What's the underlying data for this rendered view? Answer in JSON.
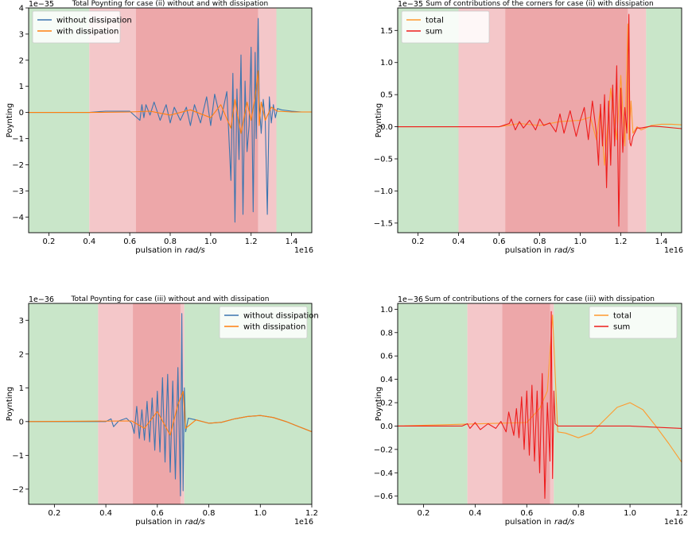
{
  "chart_data": [
    {
      "type": "line",
      "title": "Total Poynting for case (ii) without and with dissipation",
      "xlabel": "pulsation in",
      "xlabel_unit": "rad/s",
      "ylabel": "Poynting",
      "x_exponent": "1e16",
      "y_exponent": "1e−35",
      "xlim": [
        0.1,
        1.5
      ],
      "ylim": [
        -4.6,
        4.0
      ],
      "xticks": [
        0.2,
        0.4,
        0.6,
        0.8,
        1.0,
        1.2,
        1.4
      ],
      "xtick_labels": [
        "0.2",
        "0.4",
        "0.6",
        "0.8",
        "1.0",
        "1.2",
        "1.4"
      ],
      "yticks": [
        -4,
        -3,
        -2,
        -1,
        0,
        1,
        2,
        3,
        4
      ],
      "ytick_labels": [
        "−4",
        "−3",
        "−2",
        "−1",
        "0",
        "1",
        "2",
        "3",
        "4"
      ],
      "legend_position": "top-left",
      "bands": [
        {
          "x0": 0.1,
          "x1": 0.4,
          "color": "#c9e6c9"
        },
        {
          "x0": 0.4,
          "x1": 0.63,
          "color": "#f4c7c9"
        },
        {
          "x0": 0.63,
          "x1": 1.235,
          "color": "#eda7a9"
        },
        {
          "x0": 1.235,
          "x1": 1.325,
          "color": "#f4c7c9"
        },
        {
          "x0": 1.325,
          "x1": 1.5,
          "color": "#c9e6c9"
        }
      ],
      "series": [
        {
          "name": "without dissipation",
          "color": "#3b75af",
          "x": [
            0.1,
            0.4,
            0.48,
            0.6,
            0.65,
            0.66,
            0.67,
            0.68,
            0.7,
            0.72,
            0.75,
            0.78,
            0.8,
            0.82,
            0.85,
            0.88,
            0.9,
            0.92,
            0.95,
            0.98,
            1.0,
            1.02,
            1.05,
            1.08,
            1.1,
            1.11,
            1.12,
            1.13,
            1.14,
            1.15,
            1.16,
            1.17,
            1.18,
            1.19,
            1.2,
            1.21,
            1.22,
            1.225,
            1.23,
            1.235,
            1.24,
            1.25,
            1.26,
            1.27,
            1.28,
            1.29,
            1.3,
            1.31,
            1.32,
            1.33,
            1.35,
            1.4,
            1.45,
            1.5
          ],
          "y": [
            0,
            0,
            0.05,
            0.05,
            -0.3,
            0.3,
            -0.2,
            0.3,
            -0.1,
            0.4,
            -0.3,
            0.3,
            -0.4,
            0.2,
            -0.3,
            0.2,
            -0.5,
            0.3,
            -0.4,
            0.6,
            -0.5,
            0.7,
            -0.3,
            0.8,
            -2.6,
            1.5,
            -4.2,
            0.9,
            -1.8,
            2.2,
            -3.9,
            1.2,
            -1.5,
            -0.5,
            2.5,
            -3.8,
            2.3,
            -1.0,
            1.2,
            3.6,
            0.4,
            -0.8,
            0.5,
            -0.3,
            -3.9,
            0.6,
            -0.4,
            0.3,
            -0.2,
            0.15,
            0.1,
            0.05,
            0.02,
            0.02
          ]
        },
        {
          "name": "with dissipation",
          "color": "#ff7f0e",
          "x": [
            0.1,
            0.4,
            0.6,
            0.7,
            0.8,
            0.9,
            1.0,
            1.05,
            1.1,
            1.12,
            1.15,
            1.18,
            1.2,
            1.22,
            1.235,
            1.24,
            1.25,
            1.27,
            1.3,
            1.33,
            1.4,
            1.5
          ],
          "y": [
            0,
            0,
            0.02,
            0.05,
            -0.1,
            0.1,
            -0.2,
            0.3,
            -0.6,
            0.5,
            -0.8,
            0.4,
            -0.3,
            0.6,
            1.6,
            -0.5,
            0.4,
            -0.3,
            0.2,
            0.05,
            0.02,
            0.02
          ]
        }
      ]
    },
    {
      "type": "line",
      "title": "Sum of contributions of the corners for case (ii) with dissipation",
      "xlabel": "pulsation in",
      "xlabel_unit": "rad/s",
      "ylabel": "Poynting",
      "x_exponent": "1e16",
      "y_exponent": "1e−35",
      "xlim": [
        0.1,
        1.5
      ],
      "ylim": [
        -1.65,
        1.85
      ],
      "xticks": [
        0.2,
        0.4,
        0.6,
        0.8,
        1.0,
        1.2,
        1.4
      ],
      "xtick_labels": [
        "0.2",
        "0.4",
        "0.6",
        "0.8",
        "1.0",
        "1.2",
        "1.4"
      ],
      "yticks": [
        -1.5,
        -1.0,
        -0.5,
        0.0,
        0.5,
        1.0,
        1.5
      ],
      "ytick_labels": [
        "−1.5",
        "−1.0",
        "−0.5",
        "0.0",
        "0.5",
        "1.0",
        "1.5"
      ],
      "legend_position": "top-left",
      "bands": [
        {
          "x0": 0.1,
          "x1": 0.4,
          "color": "#c9e6c9"
        },
        {
          "x0": 0.4,
          "x1": 0.63,
          "color": "#f4c7c9"
        },
        {
          "x0": 0.63,
          "x1": 1.235,
          "color": "#eda7a9"
        },
        {
          "x0": 1.235,
          "x1": 1.325,
          "color": "#f4c7c9"
        },
        {
          "x0": 1.325,
          "x1": 1.5,
          "color": "#c9e6c9"
        }
      ],
      "series": [
        {
          "name": "total",
          "color": "#ff9a2e",
          "x": [
            0.1,
            0.6,
            0.7,
            0.8,
            0.9,
            1.0,
            1.05,
            1.08,
            1.1,
            1.12,
            1.15,
            1.18,
            1.2,
            1.22,
            1.235,
            1.24,
            1.25,
            1.26,
            1.28,
            1.3,
            1.35,
            1.4,
            1.45,
            1.5
          ],
          "y": [
            0,
            0,
            0.05,
            0.02,
            0.08,
            0.1,
            0.15,
            -0.2,
            0.3,
            -0.6,
            0.6,
            -0.2,
            0.8,
            -0.3,
            1.6,
            -0.2,
            0.4,
            -0.1,
            0,
            -0.05,
            0.02,
            0.04,
            0.04,
            0.03
          ]
        },
        {
          "name": "sum",
          "color": "#ee1c1c",
          "x": [
            0.1,
            0.6,
            0.65,
            0.66,
            0.68,
            0.7,
            0.72,
            0.75,
            0.78,
            0.8,
            0.82,
            0.85,
            0.88,
            0.9,
            0.92,
            0.95,
            0.98,
            1.0,
            1.02,
            1.04,
            1.06,
            1.08,
            1.09,
            1.1,
            1.11,
            1.12,
            1.13,
            1.14,
            1.15,
            1.16,
            1.17,
            1.18,
            1.19,
            1.2,
            1.21,
            1.22,
            1.23,
            1.24,
            1.245,
            1.25,
            1.26,
            1.28,
            1.3,
            1.35,
            1.4,
            1.5
          ],
          "y": [
            0,
            0,
            0.05,
            0.12,
            -0.05,
            0.08,
            -0.02,
            0.1,
            -0.05,
            0.12,
            0.02,
            0.06,
            -0.08,
            0.2,
            -0.1,
            0.25,
            -0.15,
            0.1,
            0.3,
            -0.2,
            0.4,
            -0.1,
            -0.6,
            0.35,
            -0.3,
            0.5,
            -0.95,
            0.4,
            -0.6,
            0.65,
            -0.3,
            0.95,
            -1.55,
            0.6,
            -0.4,
            0.3,
            -0.1,
            1.75,
            -0.25,
            -0.3,
            -0.15,
            -0.02,
            -0.02,
            0.01,
            0,
            -0.03
          ]
        }
      ]
    },
    {
      "type": "line",
      "title": "Total Poynting for case (iii) without and with dissipation",
      "xlabel": "pulsation in",
      "xlabel_unit": "rad/s",
      "ylabel": "Poynting",
      "x_exponent": "1e16",
      "y_exponent": "1e−36",
      "xlim": [
        0.1,
        1.2
      ],
      "ylim": [
        -2.45,
        3.5
      ],
      "xticks": [
        0.2,
        0.4,
        0.6,
        0.8,
        1.0,
        1.2
      ],
      "xtick_labels": [
        "0.2",
        "0.4",
        "0.6",
        "0.8",
        "1.0",
        "1.2"
      ],
      "yticks": [
        -2,
        -1,
        0,
        1,
        2,
        3
      ],
      "ytick_labels": [
        "−2",
        "−1",
        "0",
        "1",
        "2",
        "3"
      ],
      "legend_position": "top-right",
      "bands": [
        {
          "x0": 0.1,
          "x1": 0.37,
          "color": "#c9e6c9"
        },
        {
          "x0": 0.37,
          "x1": 0.505,
          "color": "#f4c7c9"
        },
        {
          "x0": 0.505,
          "x1": 0.69,
          "color": "#eda7a9"
        },
        {
          "x0": 0.69,
          "x1": 0.705,
          "color": "#f4c7c9"
        },
        {
          "x0": 0.705,
          "x1": 1.2,
          "color": "#c9e6c9"
        }
      ],
      "series": [
        {
          "name": "without dissipation",
          "color": "#3b75af",
          "x": [
            0.1,
            0.4,
            0.42,
            0.43,
            0.45,
            0.48,
            0.5,
            0.51,
            0.52,
            0.53,
            0.54,
            0.55,
            0.56,
            0.57,
            0.58,
            0.59,
            0.6,
            0.61,
            0.62,
            0.63,
            0.64,
            0.65,
            0.66,
            0.67,
            0.68,
            0.69,
            0.695,
            0.7,
            0.705,
            0.71,
            0.72,
            0.75,
            0.8,
            0.85,
            0.9,
            0.95,
            1.0,
            1.05,
            1.1,
            1.15,
            1.2
          ],
          "y": [
            0,
            0,
            0.08,
            -0.15,
            0.02,
            0.1,
            -0.05,
            -0.35,
            0.45,
            -0.5,
            0.35,
            -0.55,
            0.6,
            -0.6,
            0.7,
            -0.85,
            0.9,
            -0.9,
            1.3,
            -1.2,
            1.4,
            -1.5,
            1.2,
            -1.7,
            1.6,
            -2.2,
            3.2,
            -2.05,
            1.0,
            -0.3,
            0.1,
            0.05,
            -0.05,
            -0.02,
            0.08,
            0.15,
            0.18,
            0.12,
            0,
            -0.15,
            -0.3
          ]
        },
        {
          "name": "with dissipation",
          "color": "#ff7f0e",
          "x": [
            0.1,
            0.5,
            0.55,
            0.6,
            0.65,
            0.68,
            0.7,
            0.71,
            0.75,
            0.8,
            0.85,
            0.9,
            0.95,
            1.0,
            1.05,
            1.1,
            1.15,
            1.2
          ],
          "y": [
            0,
            0.02,
            -0.2,
            0.3,
            -0.4,
            0.5,
            0.9,
            -0.2,
            0.05,
            -0.05,
            -0.02,
            0.08,
            0.15,
            0.18,
            0.12,
            0,
            -0.15,
            -0.3
          ]
        }
      ]
    },
    {
      "type": "line",
      "title": "Sum of contributions of the corners for case (iii) with dissipation",
      "xlabel": "pulsation in",
      "xlabel_unit": "rad/s",
      "ylabel": "Poynting",
      "x_exponent": "1e16",
      "y_exponent": "1e−36",
      "xlim": [
        0.1,
        1.2
      ],
      "ylim": [
        -0.67,
        1.05
      ],
      "xticks": [
        0.2,
        0.4,
        0.6,
        0.8,
        1.0,
        1.2
      ],
      "xtick_labels": [
        "0.2",
        "0.4",
        "0.6",
        "0.8",
        "1.0",
        "1.2"
      ],
      "yticks": [
        -0.6,
        -0.4,
        -0.2,
        0.0,
        0.2,
        0.4,
        0.6,
        0.8,
        1.0
      ],
      "ytick_labels": [
        "−0.6",
        "−0.4",
        "−0.2",
        "0.0",
        "0.2",
        "0.4",
        "0.6",
        "0.8",
        "1.0"
      ],
      "legend_position": "top-right",
      "bands": [
        {
          "x0": 0.1,
          "x1": 0.37,
          "color": "#c9e6c9"
        },
        {
          "x0": 0.37,
          "x1": 0.505,
          "color": "#f4c7c9"
        },
        {
          "x0": 0.505,
          "x1": 0.69,
          "color": "#eda7a9"
        },
        {
          "x0": 0.69,
          "x1": 0.705,
          "color": "#f4c7c9"
        },
        {
          "x0": 0.705,
          "x1": 1.2,
          "color": "#c9e6c9"
        }
      ],
      "series": [
        {
          "name": "total",
          "color": "#ff9a2e",
          "x": [
            0.1,
            0.6,
            0.65,
            0.68,
            0.7,
            0.72,
            0.75,
            0.8,
            0.85,
            0.9,
            0.95,
            1.0,
            1.05,
            1.1,
            1.15,
            1.2
          ],
          "y": [
            0,
            0.03,
            0.15,
            0.3,
            0.95,
            -0.05,
            -0.06,
            -0.1,
            -0.06,
            0.05,
            0.16,
            0.2,
            0.14,
            0,
            -0.15,
            -0.31
          ]
        },
        {
          "name": "sum",
          "color": "#ee1c1c",
          "x": [
            0.1,
            0.35,
            0.37,
            0.38,
            0.4,
            0.42,
            0.45,
            0.48,
            0.5,
            0.52,
            0.53,
            0.55,
            0.56,
            0.57,
            0.58,
            0.59,
            0.6,
            0.61,
            0.62,
            0.63,
            0.64,
            0.65,
            0.66,
            0.67,
            0.68,
            0.69,
            0.695,
            0.7,
            0.705,
            0.71,
            0.72,
            0.8,
            0.9,
            1.0,
            1.1,
            1.2
          ],
          "y": [
            0,
            0,
            0.02,
            -0.02,
            0.03,
            -0.03,
            0.02,
            -0.02,
            0.04,
            -0.05,
            0.12,
            -0.08,
            0.15,
            -0.1,
            0.25,
            -0.2,
            0.3,
            -0.25,
            0.35,
            -0.3,
            0.3,
            -0.4,
            0.45,
            -0.62,
            0.2,
            -0.3,
            0.98,
            -0.45,
            0.3,
            0.02,
            0,
            0,
            0,
            0,
            -0.01,
            -0.02
          ]
        }
      ]
    }
  ]
}
